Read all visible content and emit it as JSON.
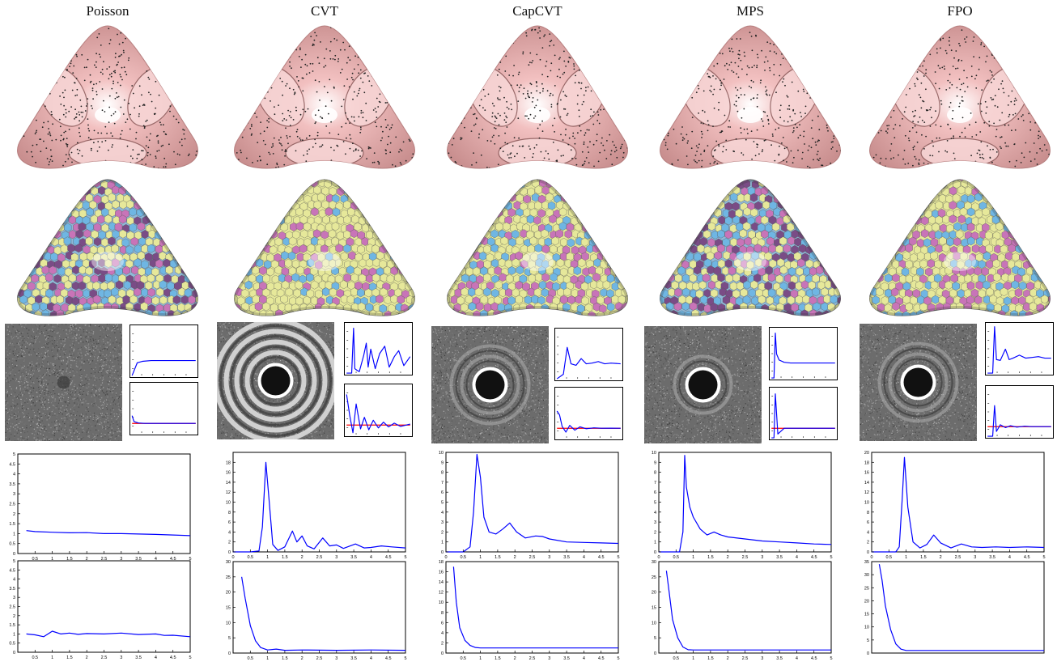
{
  "figure": {
    "columns": [
      {
        "id": "poisson",
        "title": "Poisson",
        "voronoi_fill": "mixed",
        "spectrum_rings": 0
      },
      {
        "id": "cvt",
        "title": "CVT",
        "voronoi_fill": "yellow",
        "spectrum_rings": 4
      },
      {
        "id": "capcvt",
        "title": "CapCVT",
        "voronoi_fill": "yellow-mixed",
        "spectrum_rings": 2
      },
      {
        "id": "mps",
        "title": "MPS",
        "voronoi_fill": "mixed",
        "spectrum_rings": 1
      },
      {
        "id": "fpo",
        "title": "FPO",
        "voronoi_fill": "yellow-mixed",
        "spectrum_rings": 2
      }
    ],
    "colors": {
      "surface_pink": "#f2c0c0",
      "voronoi_yellow": "#e6e89a",
      "voronoi_blue": "#6fb6e3",
      "voronoi_magenta": "#c874b8",
      "voronoi_purple": "#7a4c86",
      "curve_blue": "#0000ff",
      "reference_red": "#ff0000"
    }
  },
  "chart_data": [
    {
      "type": "line",
      "column": "Poisson",
      "row": "spectrum-top",
      "x": [
        0,
        0.08,
        0.16,
        0.3,
        0.5,
        0.7,
        1.0
      ],
      "y": [
        0,
        0.85,
        0.95,
        1.0,
        1.0,
        1.0,
        1.0
      ],
      "xlim": [
        0,
        1
      ],
      "ylim": [
        0,
        3.2
      ]
    },
    {
      "type": "line",
      "column": "Poisson",
      "row": "spectrum-bottom",
      "x": [
        0,
        0.03,
        0.1,
        0.2,
        0.5,
        1.0
      ],
      "y": [
        1.8,
        1.2,
        1.05,
        1.0,
        1.0,
        1.0
      ],
      "reference_y": 1.0,
      "xlim": [
        0,
        1
      ],
      "ylim": [
        0,
        5
      ]
    },
    {
      "type": "line",
      "column": "CVT",
      "row": "spectrum-top",
      "x": [
        0,
        0.08,
        0.11,
        0.13,
        0.16,
        0.2,
        0.27,
        0.31,
        0.34,
        0.38,
        0.45,
        0.52,
        0.6,
        0.67,
        0.75,
        0.82,
        0.9,
        1.0
      ],
      "y": [
        0,
        0,
        3.0,
        0.3,
        0.2,
        0.1,
        1.2,
        2.0,
        0.4,
        1.6,
        0.3,
        1.3,
        1.8,
        0.4,
        1.1,
        1.5,
        0.5,
        1.1
      ],
      "xlim": [
        0,
        1
      ],
      "ylim": [
        0,
        3.2
      ]
    },
    {
      "type": "line",
      "column": "CVT",
      "row": "spectrum-bottom",
      "x": [
        0,
        0.05,
        0.1,
        0.15,
        0.22,
        0.28,
        0.35,
        0.42,
        0.5,
        0.58,
        0.66,
        0.75,
        0.85,
        1.0
      ],
      "y": [
        4.2,
        2.0,
        0.2,
        3.2,
        0.6,
        1.8,
        0.5,
        1.5,
        0.7,
        1.3,
        0.8,
        1.2,
        0.85,
        1.1
      ],
      "reference_y": 1.0,
      "xlim": [
        0,
        1
      ],
      "ylim": [
        0,
        5
      ]
    },
    {
      "type": "line",
      "column": "CapCVT",
      "row": "spectrum-top",
      "x": [
        0,
        0.1,
        0.16,
        0.22,
        0.3,
        0.38,
        0.46,
        0.55,
        0.65,
        0.75,
        0.85,
        1.0
      ],
      "y": [
        0,
        0.3,
        2.1,
        1.0,
        0.9,
        1.35,
        1.0,
        1.05,
        1.15,
        1.0,
        1.05,
        1.0
      ],
      "xlim": [
        0,
        1
      ],
      "ylim": [
        0,
        3.2
      ]
    },
    {
      "type": "line",
      "column": "CapCVT",
      "row": "spectrum-bottom",
      "x": [
        0,
        0.04,
        0.08,
        0.14,
        0.2,
        0.28,
        0.36,
        0.46,
        0.58,
        0.7,
        0.85,
        1.0
      ],
      "y": [
        2.8,
        2.4,
        1.2,
        0.6,
        1.3,
        0.8,
        1.15,
        0.95,
        1.05,
        1.0,
        1.02,
        1.0
      ],
      "reference_y": 1.0,
      "xlim": [
        0,
        1
      ],
      "ylim": [
        0,
        5
      ]
    },
    {
      "type": "line",
      "column": "MPS",
      "row": "spectrum-top",
      "x": [
        0,
        0.04,
        0.06,
        0.08,
        0.12,
        0.2,
        0.3,
        0.45,
        0.6,
        0.8,
        1.0
      ],
      "y": [
        0,
        0,
        3.0,
        1.6,
        1.2,
        1.05,
        1.0,
        1.0,
        1.0,
        1.0,
        1.0
      ],
      "xlim": [
        0,
        1
      ],
      "ylim": [
        0,
        3.2
      ]
    },
    {
      "type": "line",
      "column": "MPS",
      "row": "spectrum-bottom",
      "x": [
        0,
        0.04,
        0.06,
        0.1,
        0.2,
        0.35,
        0.5,
        0.7,
        1.0
      ],
      "y": [
        0,
        0,
        4.6,
        0.4,
        1.0,
        1.0,
        1.0,
        1.0,
        1.0
      ],
      "reference_y": 1.0,
      "xlim": [
        0,
        1
      ],
      "ylim": [
        0,
        5
      ]
    },
    {
      "type": "line",
      "column": "FPO",
      "row": "spectrum-top",
      "x": [
        0,
        0.08,
        0.11,
        0.14,
        0.2,
        0.28,
        0.34,
        0.4,
        0.5,
        0.6,
        0.7,
        0.8,
        0.9,
        1.0
      ],
      "y": [
        0,
        0,
        3.1,
        0.9,
        0.85,
        1.6,
        0.9,
        1.0,
        1.2,
        1.0,
        1.05,
        1.1,
        1.0,
        1.0
      ],
      "xlim": [
        0,
        1
      ],
      "ylim": [
        0,
        3.2
      ]
    },
    {
      "type": "line",
      "column": "FPO",
      "row": "spectrum-bottom",
      "x": [
        0,
        0.08,
        0.11,
        0.14,
        0.2,
        0.28,
        0.36,
        0.46,
        0.58,
        0.7,
        0.85,
        1.0
      ],
      "y": [
        0,
        0,
        3.2,
        0.5,
        1.2,
        0.9,
        1.1,
        0.95,
        1.05,
        1.0,
        1.0,
        1.0
      ],
      "reference_y": 1.0,
      "xlim": [
        0,
        1
      ],
      "ylim": [
        0,
        5
      ]
    },
    {
      "type": "line",
      "column": "Poisson",
      "row": "rdf-top",
      "xlim": [
        0,
        5
      ],
      "ylim": [
        0,
        5
      ],
      "xticks": [
        "0.5",
        "1",
        "1.5",
        "2",
        "2.5",
        "3",
        "3.5",
        "4",
        "4.5",
        "5"
      ],
      "yticks": [
        "0",
        "0.5",
        "1",
        "1.5",
        "2",
        "2.5",
        "3",
        "3.5",
        "4",
        "4.5",
        "5"
      ],
      "x": [
        0.25,
        0.5,
        1.0,
        1.5,
        2.0,
        2.5,
        3.0,
        3.5,
        4.0,
        4.5,
        5.0
      ],
      "y": [
        1.15,
        1.1,
        1.07,
        1.04,
        1.05,
        1.0,
        1.0,
        0.98,
        0.96,
        0.93,
        0.9
      ]
    },
    {
      "type": "line",
      "column": "Poisson",
      "row": "rdf-bottom",
      "xlim": [
        0,
        5
      ],
      "ylim": [
        0,
        5
      ],
      "xticks": [
        "0.5",
        "1",
        "1.5",
        "2",
        "2.5",
        "3",
        "3.5",
        "4",
        "4.5",
        "5"
      ],
      "yticks": [
        "0",
        "0.5",
        "1",
        "1.5",
        "2",
        "2.5",
        "3",
        "3.5",
        "4",
        "4.5",
        "5"
      ],
      "x": [
        0.25,
        0.5,
        0.75,
        1.0,
        1.25,
        1.5,
        1.75,
        2.0,
        2.5,
        3.0,
        3.5,
        4.0,
        4.25,
        4.5,
        5.0
      ],
      "y": [
        1.0,
        0.95,
        0.85,
        1.15,
        1.0,
        1.05,
        0.98,
        1.02,
        1.0,
        1.05,
        0.97,
        1.0,
        0.92,
        0.93,
        0.85
      ]
    },
    {
      "type": "line",
      "column": "CVT",
      "row": "rdf-top",
      "xlim": [
        0,
        5
      ],
      "ylim": [
        0,
        20
      ],
      "xticks": [
        "0",
        "0.5",
        "1",
        "1.5",
        "2",
        "2.5",
        "3",
        "3.5",
        "4",
        "4.5",
        "5"
      ],
      "yticks": [
        "0",
        "2",
        "4",
        "6",
        "8",
        "10",
        "12",
        "14",
        "16",
        "18"
      ],
      "x": [
        0.0,
        0.5,
        0.75,
        0.85,
        0.95,
        1.05,
        1.15,
        1.3,
        1.5,
        1.72,
        1.85,
        2.0,
        2.15,
        2.35,
        2.6,
        2.8,
        3.0,
        3.2,
        3.55,
        3.8,
        4.0,
        4.3,
        4.6,
        5.0
      ],
      "y": [
        0,
        0,
        0.2,
        5.0,
        18.0,
        10.0,
        1.5,
        0.3,
        1.0,
        4.2,
        2.0,
        3.2,
        1.2,
        0.6,
        2.8,
        1.2,
        1.4,
        0.7,
        1.6,
        0.8,
        0.9,
        1.2,
        1.0,
        0.8
      ]
    },
    {
      "type": "line",
      "column": "CVT",
      "row": "rdf-bottom",
      "xlim": [
        0,
        5
      ],
      "ylim": [
        0,
        30
      ],
      "xticks": [
        "0.5",
        "1",
        "1.5",
        "2",
        "2.5",
        "3",
        "3.5",
        "4",
        "4.5",
        "5"
      ],
      "yticks": [
        "0",
        "5",
        "10",
        "15",
        "20",
        "25",
        "30"
      ],
      "x": [
        0.25,
        0.35,
        0.5,
        0.65,
        0.8,
        1.0,
        1.25,
        1.5,
        2.0,
        3.0,
        4.0,
        5.0
      ],
      "y": [
        25.0,
        18.0,
        9.0,
        4.0,
        1.8,
        1.0,
        1.3,
        0.9,
        1.0,
        0.9,
        1.0,
        0.9
      ]
    },
    {
      "type": "line",
      "column": "CapCVT",
      "row": "rdf-top",
      "xlim": [
        0,
        5
      ],
      "ylim": [
        0,
        10
      ],
      "xticks": [
        "0",
        "0.5",
        "1",
        "1.5",
        "2",
        "2.5",
        "3",
        "3.5",
        "4",
        "4.5",
        "5"
      ],
      "yticks": [
        "0",
        "1",
        "2",
        "3",
        "4",
        "5",
        "6",
        "7",
        "8",
        "9",
        "10"
      ],
      "x": [
        0.0,
        0.5,
        0.7,
        0.8,
        0.9,
        1.0,
        1.1,
        1.25,
        1.45,
        1.65,
        1.85,
        2.05,
        2.3,
        2.6,
        2.8,
        3.0,
        3.5,
        4.0,
        4.5,
        5.0
      ],
      "y": [
        0,
        0,
        0.5,
        4.0,
        9.8,
        7.5,
        3.5,
        2.0,
        1.8,
        2.3,
        2.9,
        2.0,
        1.4,
        1.6,
        1.55,
        1.3,
        1.0,
        0.95,
        0.9,
        0.85
      ]
    },
    {
      "type": "line",
      "column": "CapCVT",
      "row": "rdf-bottom",
      "xlim": [
        0,
        5
      ],
      "ylim": [
        0,
        18
      ],
      "xticks": [
        "0.5",
        "1",
        "1.5",
        "2",
        "2.5",
        "3",
        "3.5",
        "4",
        "4.5",
        "5"
      ],
      "yticks": [
        "0",
        "2",
        "4",
        "6",
        "8",
        "10",
        "12",
        "14",
        "16",
        "18"
      ],
      "x": [
        0.22,
        0.3,
        0.4,
        0.55,
        0.7,
        0.85,
        1.0,
        1.5,
        2.0,
        3.0,
        4.0,
        5.0
      ],
      "y": [
        17.0,
        10.0,
        5.0,
        2.5,
        1.5,
        1.1,
        1.0,
        1.0,
        1.0,
        1.0,
        1.0,
        1.0
      ]
    },
    {
      "type": "line",
      "column": "MPS",
      "row": "rdf-top",
      "xlim": [
        0,
        5
      ],
      "ylim": [
        0,
        10
      ],
      "xticks": [
        "0",
        "0.5",
        "1",
        "1.5",
        "2",
        "2.5",
        "3",
        "3.5",
        "4",
        "4.5",
        "5"
      ],
      "yticks": [
        "0",
        "1",
        "2",
        "3",
        "4",
        "5",
        "6",
        "7",
        "8",
        "9",
        "10"
      ],
      "x": [
        0.0,
        0.6,
        0.7,
        0.75,
        0.8,
        0.9,
        1.0,
        1.2,
        1.4,
        1.6,
        1.8,
        2.0,
        2.5,
        3.0,
        3.5,
        4.0,
        4.5,
        5.0
      ],
      "y": [
        0,
        0,
        2.0,
        9.7,
        6.5,
        4.5,
        3.5,
        2.3,
        1.7,
        2.0,
        1.7,
        1.5,
        1.3,
        1.1,
        1.0,
        0.9,
        0.8,
        0.75
      ]
    },
    {
      "type": "line",
      "column": "MPS",
      "row": "rdf-bottom",
      "xlim": [
        0,
        5
      ],
      "ylim": [
        0,
        30
      ],
      "xticks": [
        "0.5",
        "1",
        "1.5",
        "2",
        "2.5",
        "3",
        "3.5",
        "4",
        "4.5",
        "5"
      ],
      "yticks": [
        "0",
        "5",
        "10",
        "15",
        "20",
        "25",
        "30"
      ],
      "x": [
        0.22,
        0.3,
        0.4,
        0.55,
        0.7,
        0.85,
        1.0,
        1.5,
        2.0,
        3.0,
        4.0,
        5.0
      ],
      "y": [
        27.0,
        20.0,
        11.0,
        5.0,
        2.0,
        1.1,
        1.0,
        1.0,
        1.0,
        1.0,
        1.0,
        1.0
      ]
    },
    {
      "type": "line",
      "column": "FPO",
      "row": "rdf-top",
      "xlim": [
        0,
        5
      ],
      "ylim": [
        0,
        20
      ],
      "xticks": [
        "0",
        "0.5",
        "1",
        "1.5",
        "2",
        "2.5",
        "3",
        "3.5",
        "4",
        "4.5",
        "5"
      ],
      "yticks": [
        "0",
        "2",
        "4",
        "6",
        "8",
        "10",
        "12",
        "14",
        "16",
        "18",
        "20"
      ],
      "x": [
        0.0,
        0.7,
        0.8,
        0.88,
        0.95,
        1.05,
        1.2,
        1.4,
        1.6,
        1.8,
        2.0,
        2.3,
        2.6,
        2.9,
        3.2,
        3.6,
        4.0,
        4.5,
        5.0
      ],
      "y": [
        0,
        0,
        1.0,
        10.0,
        19.0,
        9.0,
        2.0,
        0.8,
        1.5,
        3.4,
        1.8,
        0.8,
        1.6,
        1.0,
        0.9,
        1.0,
        0.9,
        1.0,
        0.9
      ]
    },
    {
      "type": "line",
      "column": "FPO",
      "row": "rdf-bottom",
      "xlim": [
        0,
        5
      ],
      "ylim": [
        0,
        35
      ],
      "xticks": [],
      "yticks": [
        "0",
        "5",
        "10",
        "15",
        "20",
        "25",
        "30",
        "35"
      ],
      "x": [
        0.22,
        0.3,
        0.4,
        0.55,
        0.7,
        0.85,
        1.0,
        1.5,
        2.0,
        3.0,
        4.0,
        5.0
      ],
      "y": [
        34.0,
        28.0,
        18.0,
        9.0,
        3.5,
        1.5,
        1.0,
        1.0,
        1.0,
        1.0,
        1.0,
        1.0
      ]
    }
  ]
}
